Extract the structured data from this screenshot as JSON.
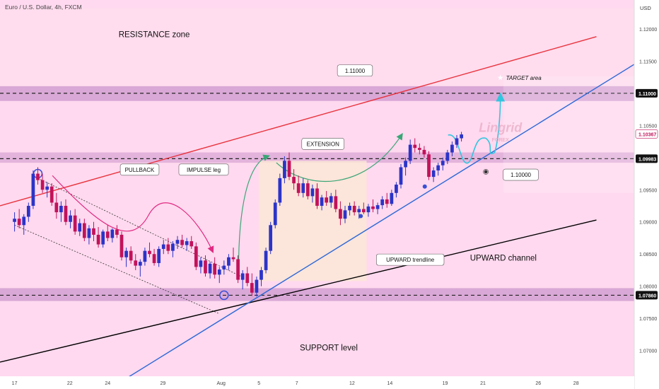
{
  "header": {
    "symbol_line": "Euro / U.S. Dollar, 4h, FXCM",
    "currency": "USD"
  },
  "colors": {
    "plot_bg": "#ffd9ef",
    "axis_bg": "#ffffff",
    "up_candle": "#2b34c8",
    "down_candle": "#c2125a",
    "resistance_line": "#e8323c",
    "channel_bottom": "#000000",
    "trendline": "#2f6ad8",
    "band": "#cf9bd0",
    "zone_fill": "#fbe6d6",
    "projection": "#31c6e0",
    "arrow_curve": "#3aa676",
    "pullback_curve": "#e02a82"
  },
  "chart_data": {
    "type": "candlestick",
    "timeframe": "4h",
    "yaxis": {
      "ticks": [
        1.12,
        1.115,
        1.1105,
        1.105,
        1.1,
        1.095,
        1.09,
        1.085,
        1.08,
        1.075,
        1.07
      ],
      "tick_labels": [
        "1.12000",
        "1.11500",
        "",
        "1.10500",
        "",
        "1.09500",
        "1.09000",
        "1.08500",
        "1.08000",
        "1.07500",
        "1.07000"
      ],
      "ylim": [
        1.066,
        1.1245
      ],
      "price_tags": [
        {
          "label": "1.11000",
          "value": 1.11,
          "style": "dark"
        },
        {
          "label": "1.10367",
          "value": 1.10367,
          "style": "red"
        },
        {
          "label": "1.09983",
          "value": 1.09983,
          "style": "dark"
        },
        {
          "label": "1.07860",
          "value": 1.0786,
          "style": "dark"
        }
      ]
    },
    "xaxis": {
      "ticks": [
        {
          "label": "17",
          "x": 0
        },
        {
          "label": "22",
          "x": 19
        },
        {
          "label": "24",
          "x": 32
        },
        {
          "label": "29",
          "x": 51
        },
        {
          "label": "Aug",
          "x": 71
        },
        {
          "label": "5",
          "x": 84
        },
        {
          "label": "7",
          "x": 97
        },
        {
          "label": "12",
          "x": 116
        },
        {
          "label": "14",
          "x": 129
        },
        {
          "label": "19",
          "x": 148
        },
        {
          "label": "21",
          "x": 161
        },
        {
          "label": "26",
          "x": 180
        },
        {
          "label": "28",
          "x": 193
        }
      ],
      "xlim": [
        -5,
        213
      ]
    },
    "candles": [
      [
        1.09,
        1.0915,
        1.0885,
        1.0905
      ],
      [
        1.0905,
        1.092,
        1.089,
        1.0895
      ],
      [
        1.0895,
        1.0912,
        1.088,
        1.0908
      ],
      [
        1.0908,
        1.093,
        1.09,
        1.0925
      ],
      [
        1.0925,
        1.098,
        1.092,
        1.0975
      ],
      [
        1.0975,
        1.0985,
        1.0958,
        1.0965
      ],
      [
        1.0965,
        1.0975,
        1.0945,
        1.095
      ],
      [
        1.095,
        1.0962,
        1.0938,
        1.0955
      ],
      [
        1.0955,
        1.096,
        1.0925,
        1.093
      ],
      [
        1.093,
        1.0945,
        1.0905,
        1.0915
      ],
      [
        1.0915,
        1.0932,
        1.09,
        1.0925
      ],
      [
        1.0925,
        1.0935,
        1.0895,
        1.09
      ],
      [
        1.09,
        1.0918,
        1.089,
        1.091
      ],
      [
        1.091,
        1.092,
        1.088,
        1.0885
      ],
      [
        1.0885,
        1.0905,
        1.0878,
        1.0898
      ],
      [
        1.0898,
        1.0905,
        1.087,
        1.0875
      ],
      [
        1.0875,
        1.0895,
        1.0865,
        1.089
      ],
      [
        1.089,
        1.09,
        1.087,
        1.088
      ],
      [
        1.088,
        1.0892,
        1.086,
        1.0865
      ],
      [
        1.0865,
        1.0888,
        1.086,
        1.0885
      ],
      [
        1.0885,
        1.0895,
        1.087,
        1.0875
      ],
      [
        1.0875,
        1.089,
        1.0868,
        1.0888
      ],
      [
        1.0888,
        1.0895,
        1.0875,
        1.088
      ],
      [
        1.088,
        1.0885,
        1.084,
        1.0845
      ],
      [
        1.0845,
        1.086,
        1.083,
        1.0855
      ],
      [
        1.0855,
        1.0862,
        1.0835,
        1.084
      ],
      [
        1.084,
        1.085,
        1.0825,
        1.0832
      ],
      [
        1.0832,
        1.0842,
        1.0815,
        1.0838
      ],
      [
        1.0838,
        1.086,
        1.0832,
        1.0855
      ],
      [
        1.0855,
        1.0868,
        1.0845,
        1.085
      ],
      [
        1.085,
        1.0858,
        1.0832,
        1.0836
      ],
      [
        1.0836,
        1.0862,
        1.083,
        1.0858
      ],
      [
        1.0858,
        1.0872,
        1.085,
        1.0865
      ],
      [
        1.0865,
        1.0875,
        1.085,
        1.0855
      ],
      [
        1.0855,
        1.087,
        1.0845,
        1.0866
      ],
      [
        1.0866,
        1.0878,
        1.0858,
        1.0872
      ],
      [
        1.0872,
        1.088,
        1.086,
        1.0864
      ],
      [
        1.0864,
        1.0875,
        1.0855,
        1.087
      ],
      [
        1.087,
        1.0878,
        1.0858,
        1.0862
      ],
      [
        1.0862,
        1.0868,
        1.0825,
        1.083
      ],
      [
        1.083,
        1.0845,
        1.082,
        1.084
      ],
      [
        1.084,
        1.0848,
        1.0815,
        1.082
      ],
      [
        1.082,
        1.0838,
        1.0812,
        1.0835
      ],
      [
        1.0835,
        1.0845,
        1.0812,
        1.0818
      ],
      [
        1.0818,
        1.083,
        1.0805,
        1.0826
      ],
      [
        1.0826,
        1.084,
        1.0818,
        1.0832
      ],
      [
        1.0832,
        1.085,
        1.0825,
        1.0845
      ],
      [
        1.0845,
        1.086,
        1.0838,
        1.0842
      ],
      [
        1.0842,
        1.0848,
        1.0805,
        1.081
      ],
      [
        1.081,
        1.0825,
        1.0795,
        1.082
      ],
      [
        1.082,
        1.083,
        1.08,
        1.0805
      ],
      [
        1.0805,
        1.082,
        1.0785,
        1.079
      ],
      [
        1.079,
        1.0815,
        1.0784,
        1.081
      ],
      [
        1.081,
        1.083,
        1.08,
        1.0825
      ],
      [
        1.0825,
        1.086,
        1.082,
        1.0855
      ],
      [
        1.0855,
        1.09,
        1.085,
        1.0895
      ],
      [
        1.0895,
        1.0935,
        1.089,
        1.093
      ],
      [
        1.093,
        1.0975,
        1.0925,
        1.0968
      ],
      [
        1.0968,
        1.1002,
        1.096,
        1.0995
      ],
      [
        1.0995,
        1.1008,
        1.0965,
        1.097
      ],
      [
        1.097,
        1.0982,
        1.095,
        1.096
      ],
      [
        1.096,
        1.0972,
        1.094,
        1.0945
      ],
      [
        1.0945,
        1.0968,
        1.0938,
        1.096
      ],
      [
        1.096,
        1.0965,
        1.0935,
        1.094
      ],
      [
        1.094,
        1.0958,
        1.093,
        1.0952
      ],
      [
        1.0952,
        1.096,
        1.092,
        1.0925
      ],
      [
        1.0925,
        1.0942,
        1.0918,
        1.0938
      ],
      [
        1.0938,
        1.0948,
        1.0925,
        1.093
      ],
      [
        1.093,
        1.0945,
        1.0922,
        1.094
      ],
      [
        1.094,
        1.095,
        1.0915,
        1.092
      ],
      [
        1.092,
        1.0932,
        1.0895,
        1.0905
      ],
      [
        1.0905,
        1.0925,
        1.0898,
        1.0918
      ],
      [
        1.0918,
        1.093,
        1.091,
        1.0925
      ],
      [
        1.0925,
        1.0932,
        1.091,
        1.0915
      ],
      [
        1.0915,
        1.0925,
        1.0905,
        1.092
      ],
      [
        1.092,
        1.093,
        1.0912,
        1.0915
      ],
      [
        1.0915,
        1.0928,
        1.0908,
        1.0924
      ],
      [
        1.0924,
        1.0935,
        1.0915,
        1.092
      ],
      [
        1.092,
        1.093,
        1.0912,
        1.0926
      ],
      [
        1.0926,
        1.094,
        1.092,
        1.0935
      ],
      [
        1.0935,
        1.0945,
        1.0922,
        1.0928
      ],
      [
        1.0928,
        1.095,
        1.0925,
        1.0945
      ],
      [
        1.0945,
        1.0962,
        1.0938,
        1.0958
      ],
      [
        1.0958,
        1.099,
        1.0952,
        1.0985
      ],
      [
        1.0985,
        1.1,
        1.0972,
        1.0995
      ],
      [
        1.0995,
        1.1028,
        1.099,
        1.102
      ],
      [
        1.102,
        1.103,
        1.1008,
        1.1015
      ],
      [
        1.1015,
        1.1022,
        1.1005,
        1.1012
      ],
      [
        1.1012,
        1.1018,
        1.1,
        1.1005
      ],
      [
        1.1005,
        1.101,
        1.0965,
        1.097
      ],
      [
        1.097,
        1.0985,
        1.0962,
        1.098
      ],
      [
        1.098,
        1.0992,
        1.0972,
        1.0988
      ],
      [
        1.0988,
        1.1,
        1.098,
        1.0995
      ],
      [
        1.0995,
        1.1012,
        1.099,
        1.1008
      ],
      [
        1.1008,
        1.1025,
        1.1002,
        1.102
      ],
      [
        1.102,
        1.1035,
        1.1015,
        1.103
      ],
      [
        1.103,
        1.104,
        1.1025,
        1.1036
      ]
    ],
    "candle_x_start": 0,
    "candle_x_step": 1.6,
    "lines": [
      {
        "name": "resistance",
        "from": [
          -5,
          1.0925
        ],
        "to": [
          200,
          1.1188
        ]
      },
      {
        "name": "upward-channel-bottom",
        "from": [
          -5,
          1.0682
        ],
        "to": [
          200,
          1.0903
        ]
      },
      {
        "name": "upward-trendline",
        "from": [
          36,
          1.065
        ],
        "to": [
          213,
          1.1145
        ]
      },
      {
        "name": "pullback-upper",
        "from": [
          8,
          1.0968
        ],
        "to": [
          78,
          1.0815
        ]
      },
      {
        "name": "pullback-lower",
        "from": [
          0,
          1.0895
        ],
        "to": [
          70,
          1.0758
        ]
      }
    ],
    "levels": [
      {
        "name": "resistance-band",
        "value": 1.11,
        "band": [
          1.1088,
          1.1111
        ]
      },
      {
        "name": "support-band",
        "value": 1.0786,
        "band": [
          1.0777,
          1.0797
        ]
      },
      {
        "name": "mid-zone",
        "value": 1.09983,
        "band": [
          1.0992,
          1.1008
        ]
      }
    ],
    "annotations": [
      {
        "text": "RESISTANCE zone",
        "x": 48,
        "y": 1.1187
      },
      {
        "text": "1.11000",
        "x": 117,
        "y": 1.1132,
        "boxed": true
      },
      {
        "text": "TARGET area",
        "x": 175,
        "y": 1.1121
      },
      {
        "text": "EXTENSION",
        "x": 106,
        "y": 1.1018,
        "boxed": true
      },
      {
        "text": "PULLBACK",
        "x": 43,
        "y": 1.0978,
        "boxed": true
      },
      {
        "text": "IMPULSE leg",
        "x": 65,
        "y": 1.0978,
        "boxed": true
      },
      {
        "text": "1.10000",
        "x": 174,
        "y": 1.097,
        "boxed": true
      },
      {
        "text": "UPWARD trendline",
        "x": 136,
        "y": 1.0838,
        "boxed": true
      },
      {
        "text": "UPWARD channel",
        "x": 168,
        "y": 1.084
      },
      {
        "text": "SUPPORT level",
        "x": 108,
        "y": 1.07
      }
    ],
    "watermark": {
      "line1": "Lingrid",
      "line2": "FOREX"
    }
  }
}
